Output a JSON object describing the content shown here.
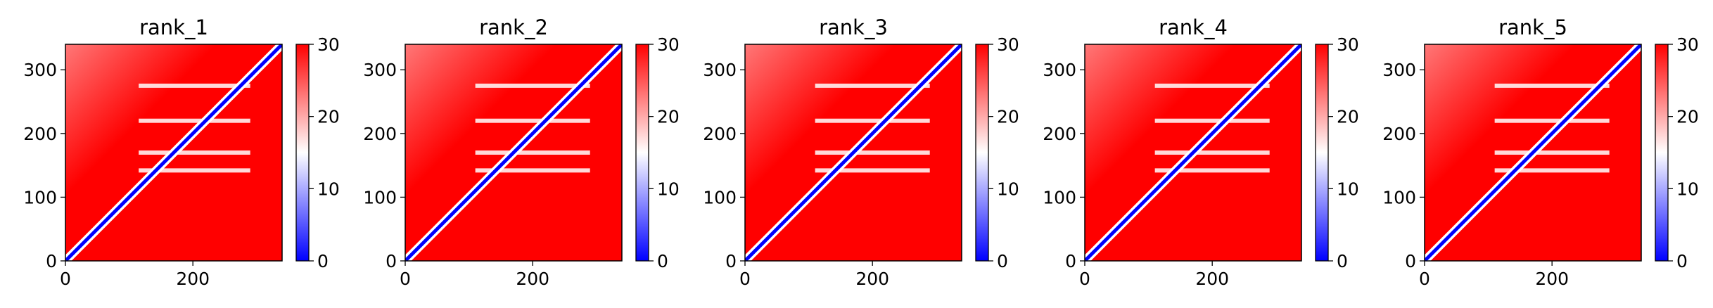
{
  "chart_data": [
    {
      "type": "heatmap",
      "title": "rank_1",
      "xlim": [
        0,
        340
      ],
      "ylim": [
        340,
        0
      ],
      "xticks": [
        0,
        200
      ],
      "xtick_labels": [
        "0",
        "200"
      ],
      "yticks": [
        0,
        100,
        200,
        300
      ],
      "ytick_labels": [
        "0",
        "100",
        "200",
        "300"
      ],
      "colorbar": {
        "range": [
          0,
          30
        ],
        "ticks": [
          0,
          10,
          20,
          30
        ],
        "tick_labels": [
          "0",
          "10",
          "20",
          "30"
        ]
      },
      "blue_blocks": [
        [
          115,
          290
        ],
        [
          335,
          340
        ]
      ],
      "blue_gaps": [
        142,
        170,
        185,
        220,
        275
      ]
    },
    {
      "type": "heatmap",
      "title": "rank_2",
      "xlim": [
        0,
        340
      ],
      "ylim": [
        340,
        0
      ],
      "xticks": [
        0,
        200
      ],
      "xtick_labels": [
        "0",
        "200"
      ],
      "yticks": [
        0,
        100,
        200,
        300
      ],
      "ytick_labels": [
        "0",
        "100",
        "200",
        "300"
      ],
      "colorbar": {
        "range": [
          0,
          30
        ],
        "ticks": [
          0,
          10,
          20,
          30
        ],
        "tick_labels": [
          "0",
          "10",
          "20",
          "30"
        ]
      },
      "blue_blocks": [
        [
          110,
          290
        ],
        [
          335,
          340
        ]
      ],
      "blue_gaps": [
        142,
        170,
        185,
        220,
        275
      ]
    },
    {
      "type": "heatmap",
      "title": "rank_3",
      "xlim": [
        0,
        340
      ],
      "ylim": [
        340,
        0
      ],
      "xticks": [
        0,
        200
      ],
      "xtick_labels": [
        "0",
        "200"
      ],
      "yticks": [
        0,
        100,
        200,
        300
      ],
      "ytick_labels": [
        "0",
        "100",
        "200",
        "300"
      ],
      "colorbar": {
        "range": [
          0,
          30
        ],
        "ticks": [
          0,
          10,
          20,
          30
        ],
        "tick_labels": [
          "0",
          "10",
          "20",
          "30"
        ]
      },
      "blue_blocks": [
        [
          110,
          290
        ],
        [
          335,
          340
        ]
      ],
      "blue_gaps": [
        142,
        170,
        185,
        220,
        275
      ]
    },
    {
      "type": "heatmap",
      "title": "rank_4",
      "xlim": [
        0,
        340
      ],
      "ylim": [
        340,
        0
      ],
      "xticks": [
        0,
        200
      ],
      "xtick_labels": [
        "0",
        "200"
      ],
      "yticks": [
        0,
        100,
        200,
        300
      ],
      "ytick_labels": [
        "0",
        "100",
        "200",
        "300"
      ],
      "colorbar": {
        "range": [
          0,
          30
        ],
        "ticks": [
          0,
          10,
          20,
          30
        ],
        "tick_labels": [
          "0",
          "10",
          "20",
          "30"
        ]
      },
      "blue_blocks": [
        [
          110,
          290
        ],
        [
          335,
          340
        ]
      ],
      "blue_gaps": [
        142,
        170,
        185,
        220,
        275
      ]
    },
    {
      "type": "heatmap",
      "title": "rank_5",
      "xlim": [
        0,
        340
      ],
      "ylim": [
        340,
        0
      ],
      "xticks": [
        0,
        200
      ],
      "xtick_labels": [
        "0",
        "200"
      ],
      "yticks": [
        0,
        100,
        200,
        300
      ],
      "ytick_labels": [
        "0",
        "100",
        "200",
        "300"
      ],
      "colorbar": {
        "range": [
          0,
          30
        ],
        "ticks": [
          0,
          10,
          20,
          30
        ],
        "tick_labels": [
          "0",
          "10",
          "20",
          "30"
        ]
      },
      "blue_blocks": [
        [
          110,
          290
        ],
        [
          335,
          340
        ]
      ],
      "blue_gaps": [
        142,
        170,
        185,
        220,
        275
      ]
    }
  ],
  "colors": {
    "low": "#0000ff",
    "mid": "#ffffff",
    "high": "#ff0000"
  }
}
